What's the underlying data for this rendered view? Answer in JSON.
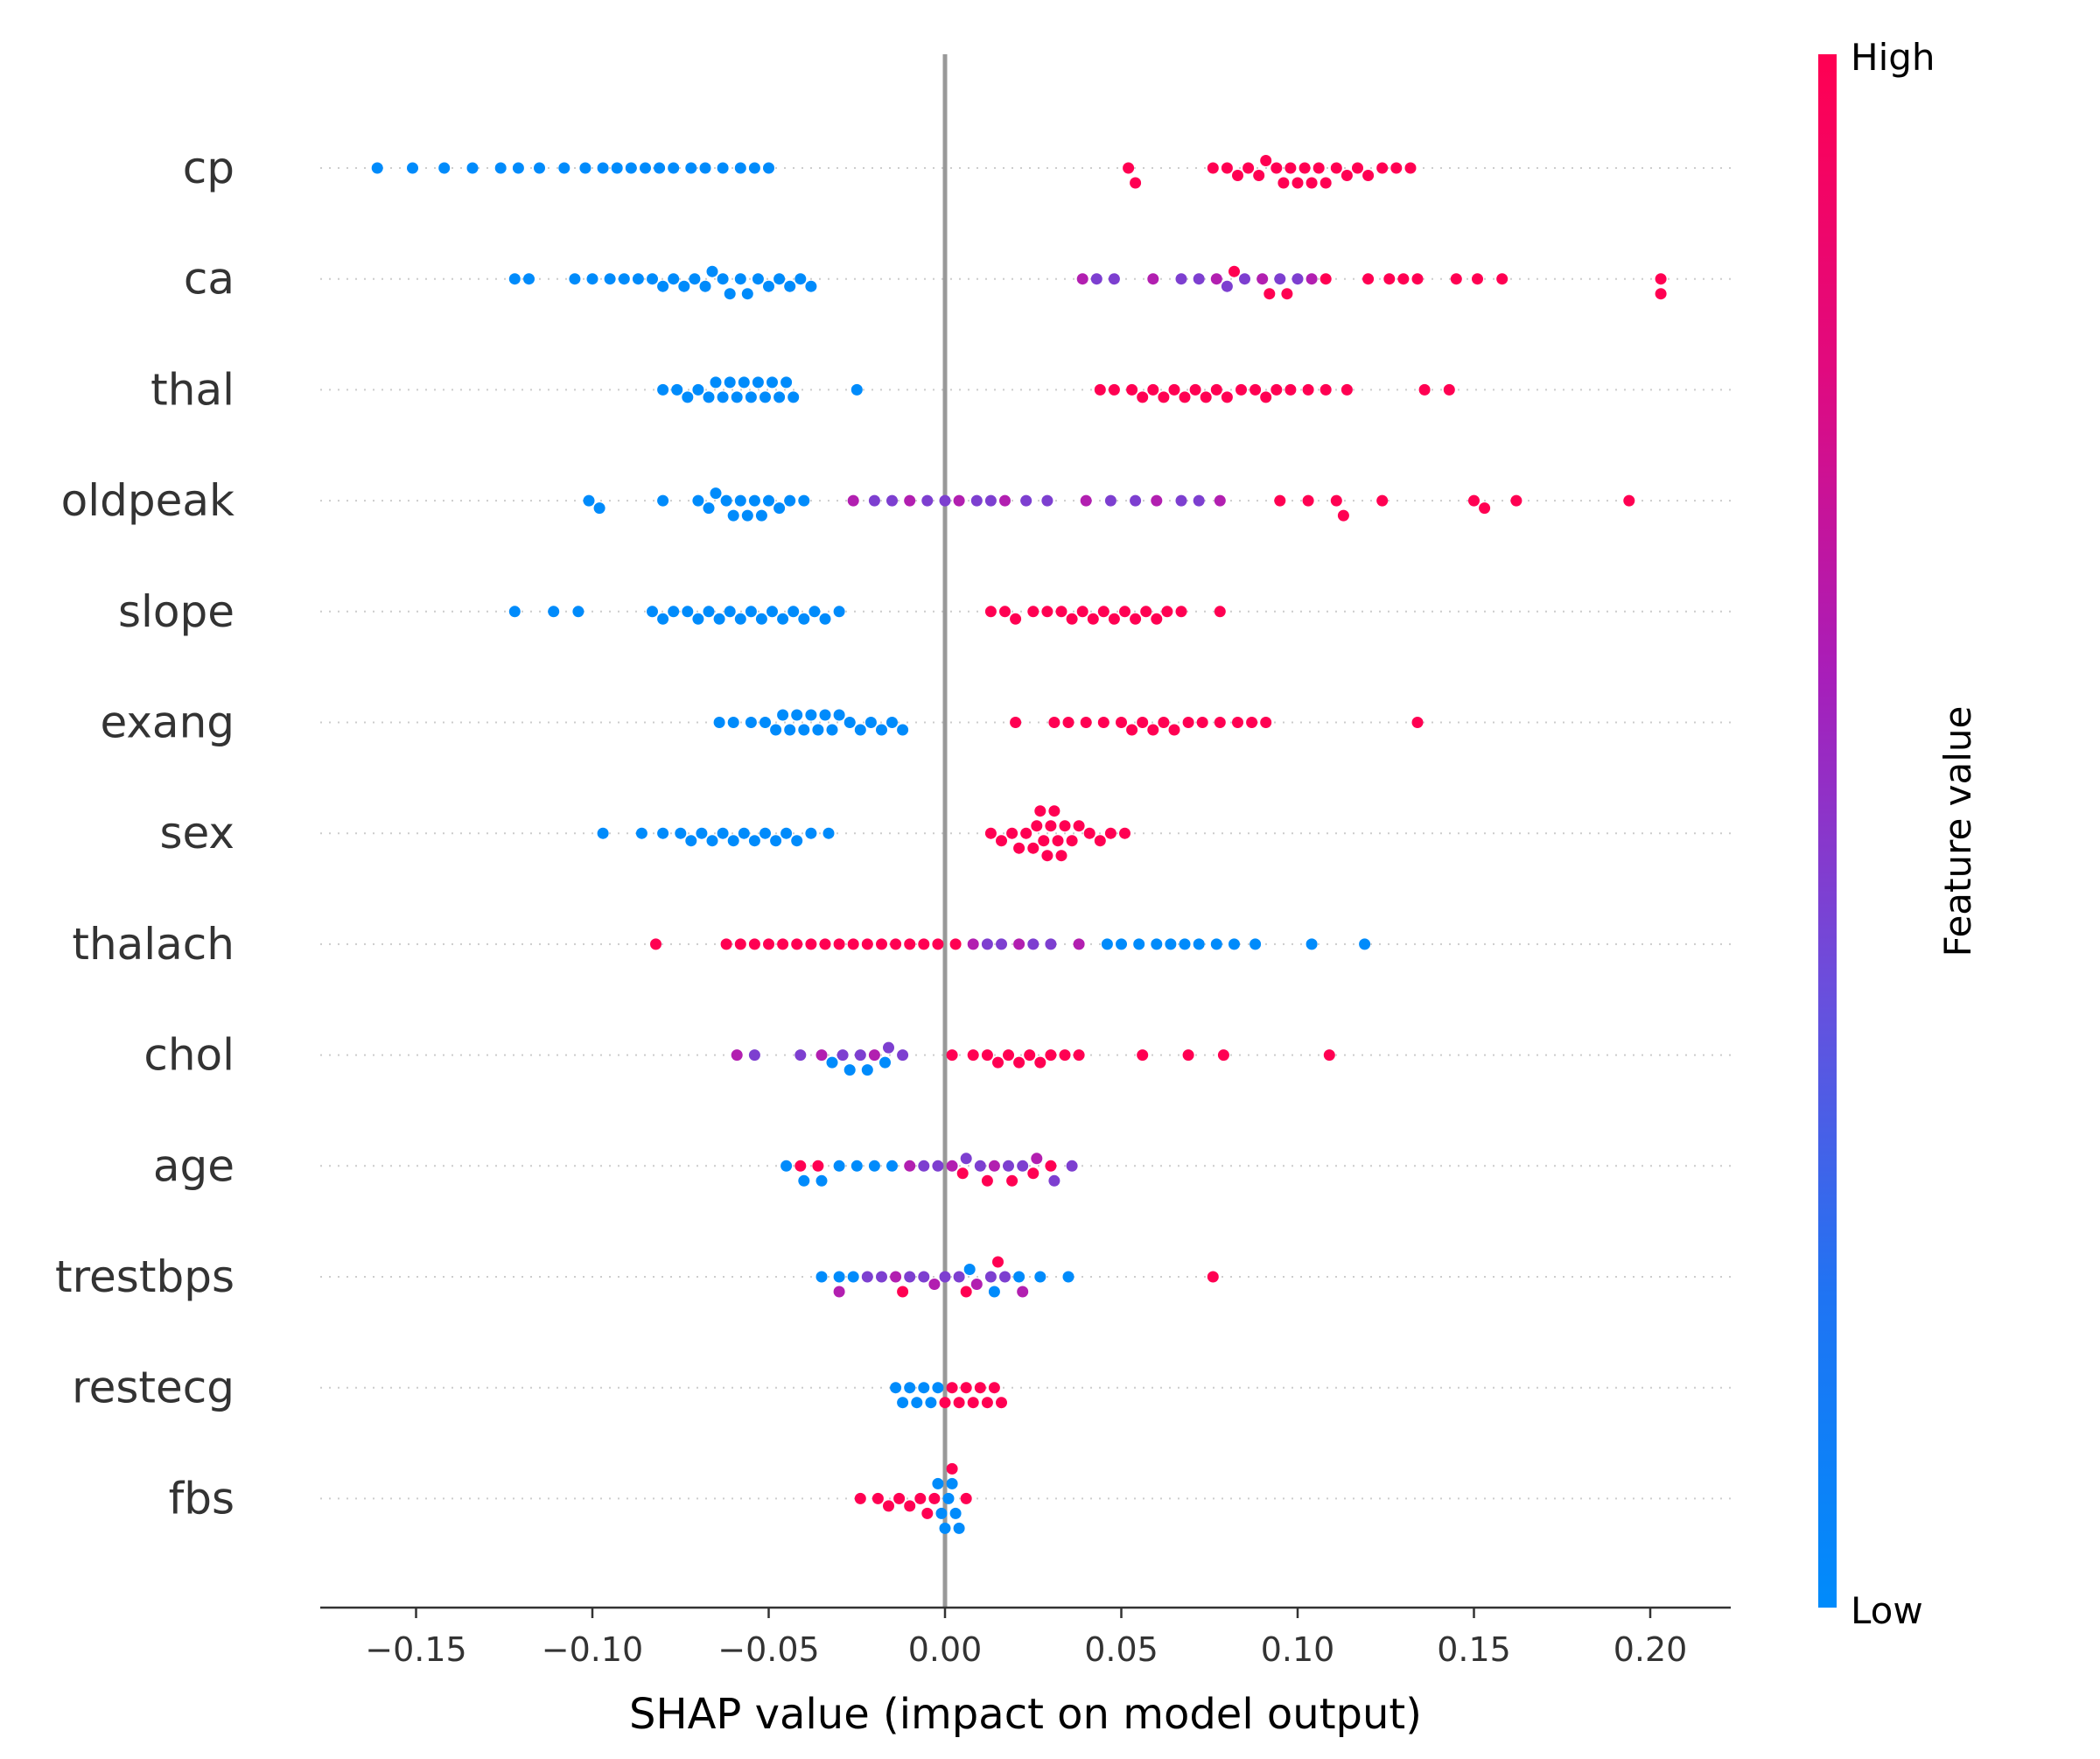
{
  "chart_data": {
    "type": "scatter",
    "subtype": "shap-beeswarm-summary",
    "title": "",
    "xlabel": "SHAP value (impact on model output)",
    "ylabel": "",
    "xlim": [
      -0.18,
      0.22
    ],
    "xticks": [
      -0.15,
      -0.1,
      -0.05,
      0.0,
      0.05,
      0.1,
      0.15,
      0.2
    ],
    "xtick_labels": [
      "−0.15",
      "−0.10",
      "−0.05",
      "0.00",
      "0.05",
      "0.10",
      "0.15",
      "0.20"
    ],
    "zero_line": true,
    "row_gridlines": "dotted",
    "colorbar": {
      "label": "Feature value",
      "high_label": "High",
      "low_label": "Low",
      "colors": [
        "#008bfb",
        "#ff0052"
      ]
    },
    "features": [
      {
        "name": "cp",
        "low_x": [
          -0.161,
          -0.151,
          -0.142,
          -0.134,
          -0.126,
          -0.121,
          -0.115,
          -0.108,
          -0.102,
          -0.097,
          -0.093,
          -0.089,
          -0.085,
          -0.081,
          -0.077,
          -0.072,
          -0.068,
          -0.063,
          -0.058,
          -0.054,
          -0.05
        ],
        "high_x": [
          0.052,
          0.054,
          0.076,
          0.08,
          0.083,
          0.086,
          0.089,
          0.091,
          0.094,
          0.096,
          0.098,
          0.1,
          0.102,
          0.104,
          0.106,
          0.108,
          0.111,
          0.114,
          0.117,
          0.12,
          0.124,
          0.128,
          0.132
        ]
      },
      {
        "name": "ca",
        "low_x": [
          -0.122,
          -0.118,
          -0.105,
          -0.1,
          -0.095,
          -0.091,
          -0.087,
          -0.083,
          -0.08,
          -0.077,
          -0.074,
          -0.071,
          -0.068,
          -0.066,
          -0.063,
          -0.061,
          -0.058,
          -0.056,
          -0.053,
          -0.05,
          -0.047,
          -0.044,
          -0.041,
          -0.038
        ],
        "mid_x": [
          0.039,
          0.043,
          0.048,
          0.059,
          0.067,
          0.072,
          0.077,
          0.08,
          0.085,
          0.09,
          0.095,
          0.1,
          0.104
        ],
        "high_x": [
          0.082,
          0.092,
          0.097,
          0.108,
          0.12,
          0.126,
          0.13,
          0.134,
          0.145,
          0.151,
          0.158,
          0.203,
          0.203
        ]
      },
      {
        "name": "thal",
        "low_x": [
          -0.08,
          -0.076,
          -0.073,
          -0.07,
          -0.067,
          -0.065,
          -0.063,
          -0.061,
          -0.059,
          -0.057,
          -0.055,
          -0.053,
          -0.051,
          -0.049,
          -0.047,
          -0.045,
          -0.043,
          -0.025
        ],
        "high_x": [
          0.044,
          0.048,
          0.053,
          0.056,
          0.059,
          0.062,
          0.065,
          0.068,
          0.071,
          0.074,
          0.077,
          0.08,
          0.084,
          0.088,
          0.091,
          0.094,
          0.098,
          0.103,
          0.108,
          0.114,
          0.136,
          0.143
        ]
      },
      {
        "name": "oldpeak",
        "low_x": [
          -0.101,
          -0.098,
          -0.08,
          -0.07,
          -0.067,
          -0.065,
          -0.062,
          -0.06,
          -0.058,
          -0.056,
          -0.054,
          -0.052,
          -0.05,
          -0.047,
          -0.044,
          -0.04
        ],
        "mid_x": [
          -0.026,
          -0.02,
          -0.015,
          -0.01,
          -0.005,
          0.0,
          0.004,
          0.009,
          0.013,
          0.017,
          0.023,
          0.029,
          0.04,
          0.047,
          0.054,
          0.06,
          0.067,
          0.072,
          0.078
        ],
        "high_x": [
          0.095,
          0.103,
          0.111,
          0.113,
          0.124,
          0.15,
          0.153,
          0.162,
          0.194
        ]
      },
      {
        "name": "slope",
        "low_x": [
          -0.122,
          -0.111,
          -0.104,
          -0.083,
          -0.08,
          -0.077,
          -0.073,
          -0.07,
          -0.067,
          -0.064,
          -0.061,
          -0.058,
          -0.055,
          -0.052,
          -0.049,
          -0.046,
          -0.043,
          -0.04,
          -0.037,
          -0.034,
          -0.03
        ],
        "high_x": [
          0.013,
          0.017,
          0.02,
          0.025,
          0.029,
          0.033,
          0.036,
          0.039,
          0.042,
          0.045,
          0.048,
          0.051,
          0.054,
          0.057,
          0.06,
          0.063,
          0.067,
          0.078
        ]
      },
      {
        "name": "exang",
        "low_x": [
          -0.064,
          -0.06,
          -0.055,
          -0.051,
          -0.048,
          -0.046,
          -0.044,
          -0.042,
          -0.04,
          -0.038,
          -0.036,
          -0.034,
          -0.032,
          -0.03,
          -0.027,
          -0.024,
          -0.021,
          -0.018,
          -0.015,
          -0.012
        ],
        "high_x": [
          0.02,
          0.031,
          0.035,
          0.04,
          0.045,
          0.05,
          0.053,
          0.056,
          0.059,
          0.062,
          0.065,
          0.069,
          0.073,
          0.078,
          0.083,
          0.087,
          0.091,
          0.134
        ]
      },
      {
        "name": "sex",
        "low_x": [
          -0.097,
          -0.086,
          -0.08,
          -0.075,
          -0.072,
          -0.069,
          -0.066,
          -0.063,
          -0.06,
          -0.057,
          -0.054,
          -0.051,
          -0.048,
          -0.045,
          -0.042,
          -0.038,
          -0.033
        ],
        "high_x": [
          0.013,
          0.016,
          0.019,
          0.021,
          0.023,
          0.025,
          0.026,
          0.027,
          0.028,
          0.029,
          0.03,
          0.031,
          0.032,
          0.033,
          0.034,
          0.036,
          0.038,
          0.041,
          0.044,
          0.047,
          0.051
        ]
      },
      {
        "name": "thalach",
        "high_x": [
          -0.082,
          -0.062,
          -0.058,
          -0.054,
          -0.05,
          -0.046,
          -0.042,
          -0.038,
          -0.034,
          -0.03,
          -0.026,
          -0.022,
          -0.018,
          -0.014,
          -0.01,
          -0.006,
          -0.002,
          0.003
        ],
        "mid_x": [
          0.008,
          0.012,
          0.016,
          0.021,
          0.025,
          0.03,
          0.038
        ],
        "low_x": [
          0.046,
          0.05,
          0.055,
          0.06,
          0.064,
          0.068,
          0.072,
          0.077,
          0.082,
          0.088,
          0.104,
          0.119
        ]
      },
      {
        "name": "chol",
        "mid_x": [
          -0.059,
          -0.054,
          -0.041,
          -0.035,
          -0.029,
          -0.024,
          -0.02,
          -0.016,
          -0.012
        ],
        "low_x": [
          -0.032,
          -0.027,
          -0.022,
          -0.017
        ],
        "high_x": [
          0.002,
          0.008,
          0.012,
          0.015,
          0.018,
          0.021,
          0.024,
          0.027,
          0.03,
          0.034,
          0.038,
          0.056,
          0.069,
          0.079,
          0.109
        ]
      },
      {
        "name": "age",
        "low_x": [
          -0.045,
          -0.04,
          -0.035,
          -0.03,
          -0.025,
          -0.02,
          -0.015
        ],
        "mid_x": [
          -0.01,
          -0.006,
          -0.002,
          0.002,
          0.006,
          0.01,
          0.014,
          0.018,
          0.022,
          0.026,
          0.031,
          0.036
        ],
        "high_x": [
          -0.041,
          -0.036,
          0.005,
          0.012,
          0.019,
          0.025,
          0.03
        ]
      },
      {
        "name": "trestbps",
        "low_x": [
          -0.035,
          -0.03,
          -0.026,
          0.007,
          0.014,
          0.021,
          0.027,
          0.035
        ],
        "mid_x": [
          -0.03,
          -0.022,
          -0.018,
          -0.014,
          -0.01,
          -0.006,
          -0.003,
          0.0,
          0.004,
          0.009,
          0.013,
          0.017,
          0.022
        ],
        "high_x": [
          -0.012,
          0.006,
          0.015,
          0.076
        ]
      },
      {
        "name": "restecg",
        "low_x": [
          -0.014,
          -0.012,
          -0.01,
          -0.008,
          -0.006,
          -0.004,
          -0.002
        ],
        "high_x": [
          0.0,
          0.002,
          0.004,
          0.006,
          0.008,
          0.01,
          0.012,
          0.014,
          0.016
        ]
      },
      {
        "name": "fbs",
        "high_x": [
          -0.024,
          -0.019,
          -0.016,
          -0.013,
          -0.01,
          -0.007,
          -0.005,
          -0.003,
          0.002,
          0.006
        ],
        "low_x": [
          -0.002,
          -0.001,
          0.0,
          0.001,
          0.002,
          0.003,
          0.004
        ]
      }
    ]
  }
}
